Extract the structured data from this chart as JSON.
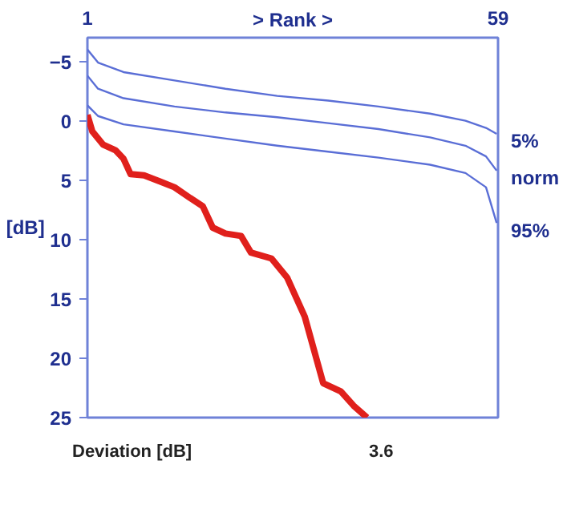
{
  "chart_data": {
    "type": "line",
    "xlabel": "> Rank >",
    "ylabel": "[dB]",
    "xlim": [
      1,
      59
    ],
    "xticks": [
      1,
      59
    ],
    "ylim": [
      25,
      -7
    ],
    "yticks": [
      -5,
      0,
      5,
      10,
      15,
      20,
      25
    ],
    "grid": false,
    "series": [
      {
        "name": "5%",
        "color": "#5a6ed6",
        "x": [
          1,
          2.5,
          6.1,
          13.3,
          20.5,
          27.8,
          35,
          42.1,
          49.4,
          54.4,
          57.3,
          58.8
        ],
        "values": [
          -6.0,
          -4.9,
          -4.1,
          -3.4,
          -2.7,
          -2.1,
          -1.7,
          -1.2,
          -0.6,
          0.0,
          0.6,
          1.1
        ]
      },
      {
        "name": "norm",
        "color": "#5a6ed6",
        "x": [
          1,
          2.5,
          6.1,
          13.3,
          20.5,
          27.8,
          35,
          42.1,
          49.4,
          54.4,
          57.3,
          58.8
        ],
        "values": [
          -3.8,
          -2.7,
          -1.9,
          -1.2,
          -0.7,
          -0.3,
          0.2,
          0.7,
          1.4,
          2.1,
          3.0,
          4.2
        ]
      },
      {
        "name": "95%",
        "color": "#5a6ed6",
        "x": [
          1,
          2.5,
          6.1,
          13.3,
          20.5,
          27.8,
          35,
          42.1,
          49.4,
          54.4,
          57.3,
          58.8
        ],
        "values": [
          -1.3,
          -0.4,
          0.3,
          0.9,
          1.5,
          2.1,
          2.6,
          3.1,
          3.7,
          4.4,
          5.6,
          8.6
        ]
      },
      {
        "color": "#e0201c",
        "x": [
          1,
          1.7,
          3.2,
          5,
          6.1,
          7.1,
          9,
          11.2,
          13.3,
          15.5,
          17.3,
          18.7,
          20.5,
          22.7,
          24.1,
          27,
          29.2,
          31.7,
          34.3,
          36.8,
          38.6,
          40.5
        ],
        "values": [
          -0.5,
          0.9,
          2.0,
          2.5,
          3.2,
          4.5,
          4.6,
          5.1,
          5.6,
          6.5,
          7.2,
          9.0,
          9.5,
          9.7,
          11.1,
          11.6,
          13.2,
          16.5,
          22.1,
          22.8,
          24.0,
          25
        ]
      }
    ],
    "annotations": [
      "Deviation [dB]",
      "3.6"
    ]
  }
}
